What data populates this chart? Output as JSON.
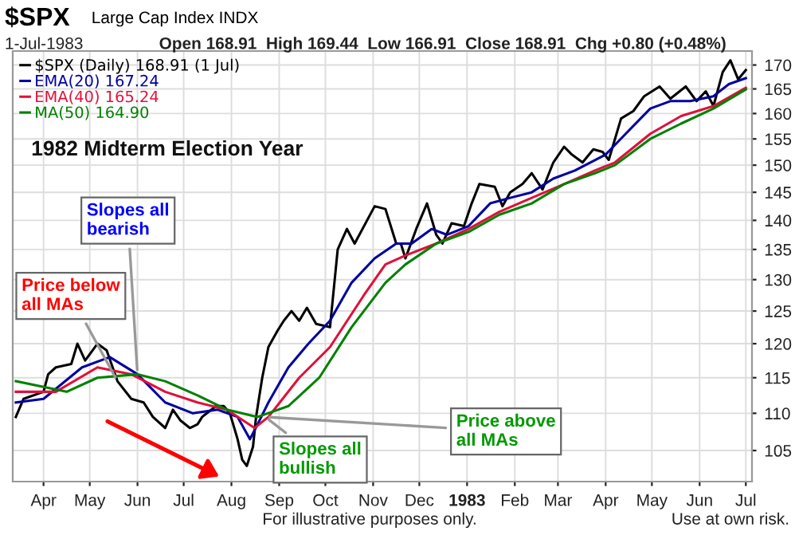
{
  "chart_data": {
    "type": "line",
    "title": "$SPX",
    "subtitle": "Large Cap Index INDX",
    "annotations": [
      "1-Jul-1983",
      "Open 168.91  High 169.44  Low 166.91  Close 168.91  Chg +0.80 (+0.48%)",
      {
        "text": "Price below all MAs",
        "x": "1982-05-19",
        "y": 114.5
      },
      {
        "text": "Slopes all bearish",
        "x": "1982-06-01",
        "y": 115.5
      },
      {
        "text": "Slopes all bullish",
        "x": "1982-08-23",
        "y": 109.5
      },
      {
        "text": "Price above all MAs",
        "x": "1982-08-23",
        "y": 109.5
      },
      "1982 Midterm Election Year",
      "For illustrative purposes only.",
      "Use at own risk."
    ],
    "series": [
      {
        "name": "$SPX (Daily) 168.91 (1 Jul)",
        "color": "#000000",
        "x": [
          "1982-03-14",
          "1982-03-19",
          "1982-04-01",
          "1982-04-04",
          "1982-04-09",
          "1982-04-19",
          "1982-04-23",
          "1982-04-28",
          "1982-05-06",
          "1982-05-12",
          "1982-05-19",
          "1982-05-28",
          "1982-06-05",
          "1982-06-11",
          "1982-06-19",
          "1982-06-24",
          "1982-06-29",
          "1982-07-05",
          "1982-07-10",
          "1982-07-13",
          "1982-07-22",
          "1982-07-27",
          "1982-07-31",
          "1982-08-05",
          "1982-08-08",
          "1982-08-11",
          "1982-08-15",
          "1982-08-17",
          "1982-08-21",
          "1982-08-25",
          "1982-08-31",
          "1982-09-04",
          "1982-09-09",
          "1982-09-14",
          "1982-09-19",
          "1982-09-25",
          "1982-10-04",
          "1982-10-09",
          "1982-10-15",
          "1982-10-20",
          "1982-11-02",
          "1982-11-09",
          "1982-11-16",
          "1982-11-19",
          "1982-11-22",
          "1982-11-29",
          "1982-12-06",
          "1982-12-12",
          "1982-12-16",
          "1982-12-22",
          "1982-12-30",
          "1983-01-04",
          "1983-01-09",
          "1983-01-19",
          "1983-01-24",
          "1983-01-29",
          "1983-02-06",
          "1983-02-12",
          "1983-02-19",
          "1983-02-26",
          "1983-03-05",
          "1983-03-10",
          "1983-03-17",
          "1983-03-24",
          "1983-03-30",
          "1983-04-03",
          "1983-04-11",
          "1983-04-19",
          "1983-04-26",
          "1983-05-06",
          "1983-05-13",
          "1983-05-23",
          "1983-05-30",
          "1983-06-05",
          "1983-06-10",
          "1983-06-16",
          "1983-06-21",
          "1983-06-26",
          "1983-07-01"
        ],
        "values": [
          109.5,
          112,
          113,
          115.5,
          116.5,
          117,
          120,
          117.5,
          120,
          119,
          114.5,
          112,
          111.5,
          109.5,
          108,
          110.5,
          109,
          108,
          108.5,
          109.5,
          111,
          111,
          110,
          106.5,
          103.8,
          103,
          105.5,
          109.5,
          115,
          119.5,
          122,
          123.5,
          125,
          123.5,
          125.5,
          123,
          122.5,
          135,
          138.5,
          136,
          142.5,
          142,
          136,
          136,
          133.5,
          138.5,
          143,
          137.5,
          136,
          139.5,
          139,
          143,
          146.5,
          146,
          142.5,
          145,
          146.5,
          148.5,
          145.5,
          150.5,
          153.5,
          152,
          150.5,
          153,
          152.5,
          151,
          159,
          160.5,
          163.5,
          165.5,
          163,
          165.5,
          162.5,
          164.5,
          161.5,
          168.5,
          171,
          167,
          168.91
        ]
      },
      {
        "name": "EMA(20) 167.24",
        "color": "#0000a0",
        "x": [
          "1982-03-14",
          "1982-04-01",
          "1982-04-26",
          "1982-05-14",
          "1982-06-01",
          "1982-06-19",
          "1982-07-07",
          "1982-07-23",
          "1982-08-05",
          "1982-08-13",
          "1982-08-18",
          "1982-08-25",
          "1982-09-07",
          "1982-09-20",
          "1982-10-04",
          "1982-10-18",
          "1982-11-02",
          "1982-11-16",
          "1982-11-26",
          "1982-12-09",
          "1982-12-19",
          "1983-01-02",
          "1983-01-16",
          "1983-01-29",
          "1983-02-12",
          "1983-02-26",
          "1983-03-12",
          "1983-04-01",
          "1983-04-14",
          "1983-04-30",
          "1983-05-13",
          "1983-05-26",
          "1983-06-10",
          "1983-06-20",
          "1983-07-01"
        ],
        "values": [
          111.5,
          112,
          116.5,
          118,
          115.5,
          111.5,
          110,
          110.5,
          109.5,
          106.5,
          108.5,
          111.5,
          116.5,
          120,
          123.5,
          129.5,
          133.5,
          136,
          136,
          138.5,
          137.5,
          139,
          143,
          144,
          145,
          147.5,
          149,
          152,
          156,
          161,
          162.5,
          162.5,
          163.5,
          166,
          167.24
        ]
      },
      {
        "name": "EMA(40) 165.24",
        "color": "#e0103a",
        "x": [
          "1982-03-14",
          "1982-04-09",
          "1982-05-06",
          "1982-05-28",
          "1982-06-19",
          "1982-07-10",
          "1982-07-29",
          "1982-08-16",
          "1982-08-25",
          "1982-09-14",
          "1982-10-04",
          "1982-10-26",
          "1982-11-09",
          "1982-11-22",
          "1982-12-12",
          "1983-01-02",
          "1983-01-22",
          "1983-02-12",
          "1983-03-05",
          "1983-03-25",
          "1983-04-07",
          "1983-04-30",
          "1983-05-20",
          "1983-06-10",
          "1983-07-01"
        ],
        "values": [
          113,
          113,
          116.5,
          115.5,
          113,
          111.5,
          110.5,
          108,
          109.5,
          115,
          119.5,
          127.5,
          132.5,
          134,
          136,
          138.5,
          141.5,
          144,
          146.5,
          149,
          150.5,
          156,
          159.5,
          161.5,
          165.24
        ]
      },
      {
        "name": "MA(50) 164.90",
        "color": "#008000",
        "x": [
          "1982-03-14",
          "1982-04-16",
          "1982-05-06",
          "1982-06-01",
          "1982-06-19",
          "1982-07-10",
          "1982-07-29",
          "1982-08-18",
          "1982-09-07",
          "1982-09-27",
          "1982-10-18",
          "1982-11-09",
          "1982-11-22",
          "1982-12-12",
          "1983-01-02",
          "1983-01-22",
          "1983-02-12",
          "1983-03-05",
          "1983-03-25",
          "1983-04-07",
          "1983-04-30",
          "1983-05-20",
          "1983-06-10",
          "1983-07-01"
        ],
        "values": [
          114.5,
          113,
          115,
          115.5,
          114.5,
          112.5,
          110.5,
          109.5,
          111,
          115,
          122.5,
          129.5,
          132.5,
          136,
          138,
          141,
          143,
          146.5,
          148.5,
          150,
          155,
          158,
          161,
          164.9
        ]
      }
    ],
    "xlim": [
      "1982-03-12",
      "1983-07-05"
    ],
    "xticks": [
      {
        "value": "1982-04-01",
        "label": "Apr"
      },
      {
        "value": "1982-05-01",
        "label": "May"
      },
      {
        "value": "1982-06-01",
        "label": "Jun"
      },
      {
        "value": "1982-07-01",
        "label": "Jul"
      },
      {
        "value": "1982-08-01",
        "label": "Aug"
      },
      {
        "value": "1982-09-01",
        "label": "Sep"
      },
      {
        "value": "1982-10-01",
        "label": "Oct"
      },
      {
        "value": "1982-11-01",
        "label": "Nov"
      },
      {
        "value": "1982-12-01",
        "label": "Dec"
      },
      {
        "value": "1983-01-01",
        "label": "1983"
      },
      {
        "value": "1983-02-01",
        "label": "Feb"
      },
      {
        "value": "1983-03-01",
        "label": "Mar"
      },
      {
        "value": "1983-04-01",
        "label": "Apr"
      },
      {
        "value": "1983-05-01",
        "label": "May"
      },
      {
        "value": "1983-06-01",
        "label": "Jun"
      },
      {
        "value": "1983-07-01",
        "label": "Jul"
      }
    ],
    "ylim": [
      101,
      173
    ],
    "yticks": [
      105,
      110,
      115,
      120,
      125,
      130,
      135,
      140,
      145,
      150,
      155,
      160,
      165,
      170
    ],
    "log": true,
    "grid": true,
    "legend": "top left",
    "marker": "none",
    "line_style": "solid"
  }
}
